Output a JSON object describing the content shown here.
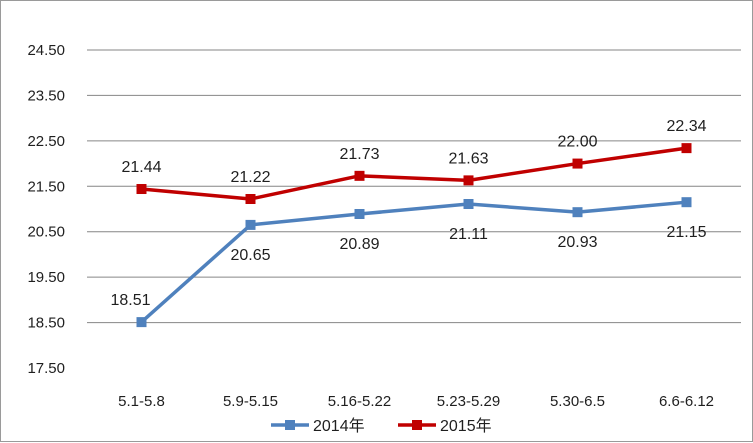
{
  "chart_data": {
    "type": "line",
    "title": "",
    "xlabel": "",
    "ylabel": "",
    "categories": [
      "5.1-5.8",
      "5.9-5.15",
      "5.16-5.22",
      "5.23-5.29",
      "5.30-6.5",
      "6.6-6.12"
    ],
    "ylim": [
      17.5,
      24.5
    ],
    "yticks": [
      "17.50",
      "18.50",
      "19.50",
      "20.50",
      "21.50",
      "22.50",
      "23.50",
      "24.50"
    ],
    "grid": "horizontal",
    "legend_position": "bottom",
    "series": [
      {
        "name": "2014年",
        "color": "#4f81bd",
        "marker": "square",
        "values": [
          18.51,
          20.65,
          20.89,
          21.11,
          20.93,
          21.15
        ],
        "labels": [
          "18.51",
          "20.65",
          "20.89",
          "21.11",
          "20.93",
          "21.15"
        ],
        "label_position": [
          "above",
          "below",
          "below",
          "below",
          "below",
          "below"
        ]
      },
      {
        "name": "2015年",
        "color": "#c00000",
        "marker": "square",
        "values": [
          21.44,
          21.22,
          21.73,
          21.63,
          22.0,
          22.34
        ],
        "labels": [
          "21.44",
          "21.22",
          "21.73",
          "21.63",
          "22.00",
          "22.34"
        ],
        "label_position": [
          "above",
          "above",
          "above",
          "above",
          "above",
          "above"
        ]
      }
    ]
  }
}
